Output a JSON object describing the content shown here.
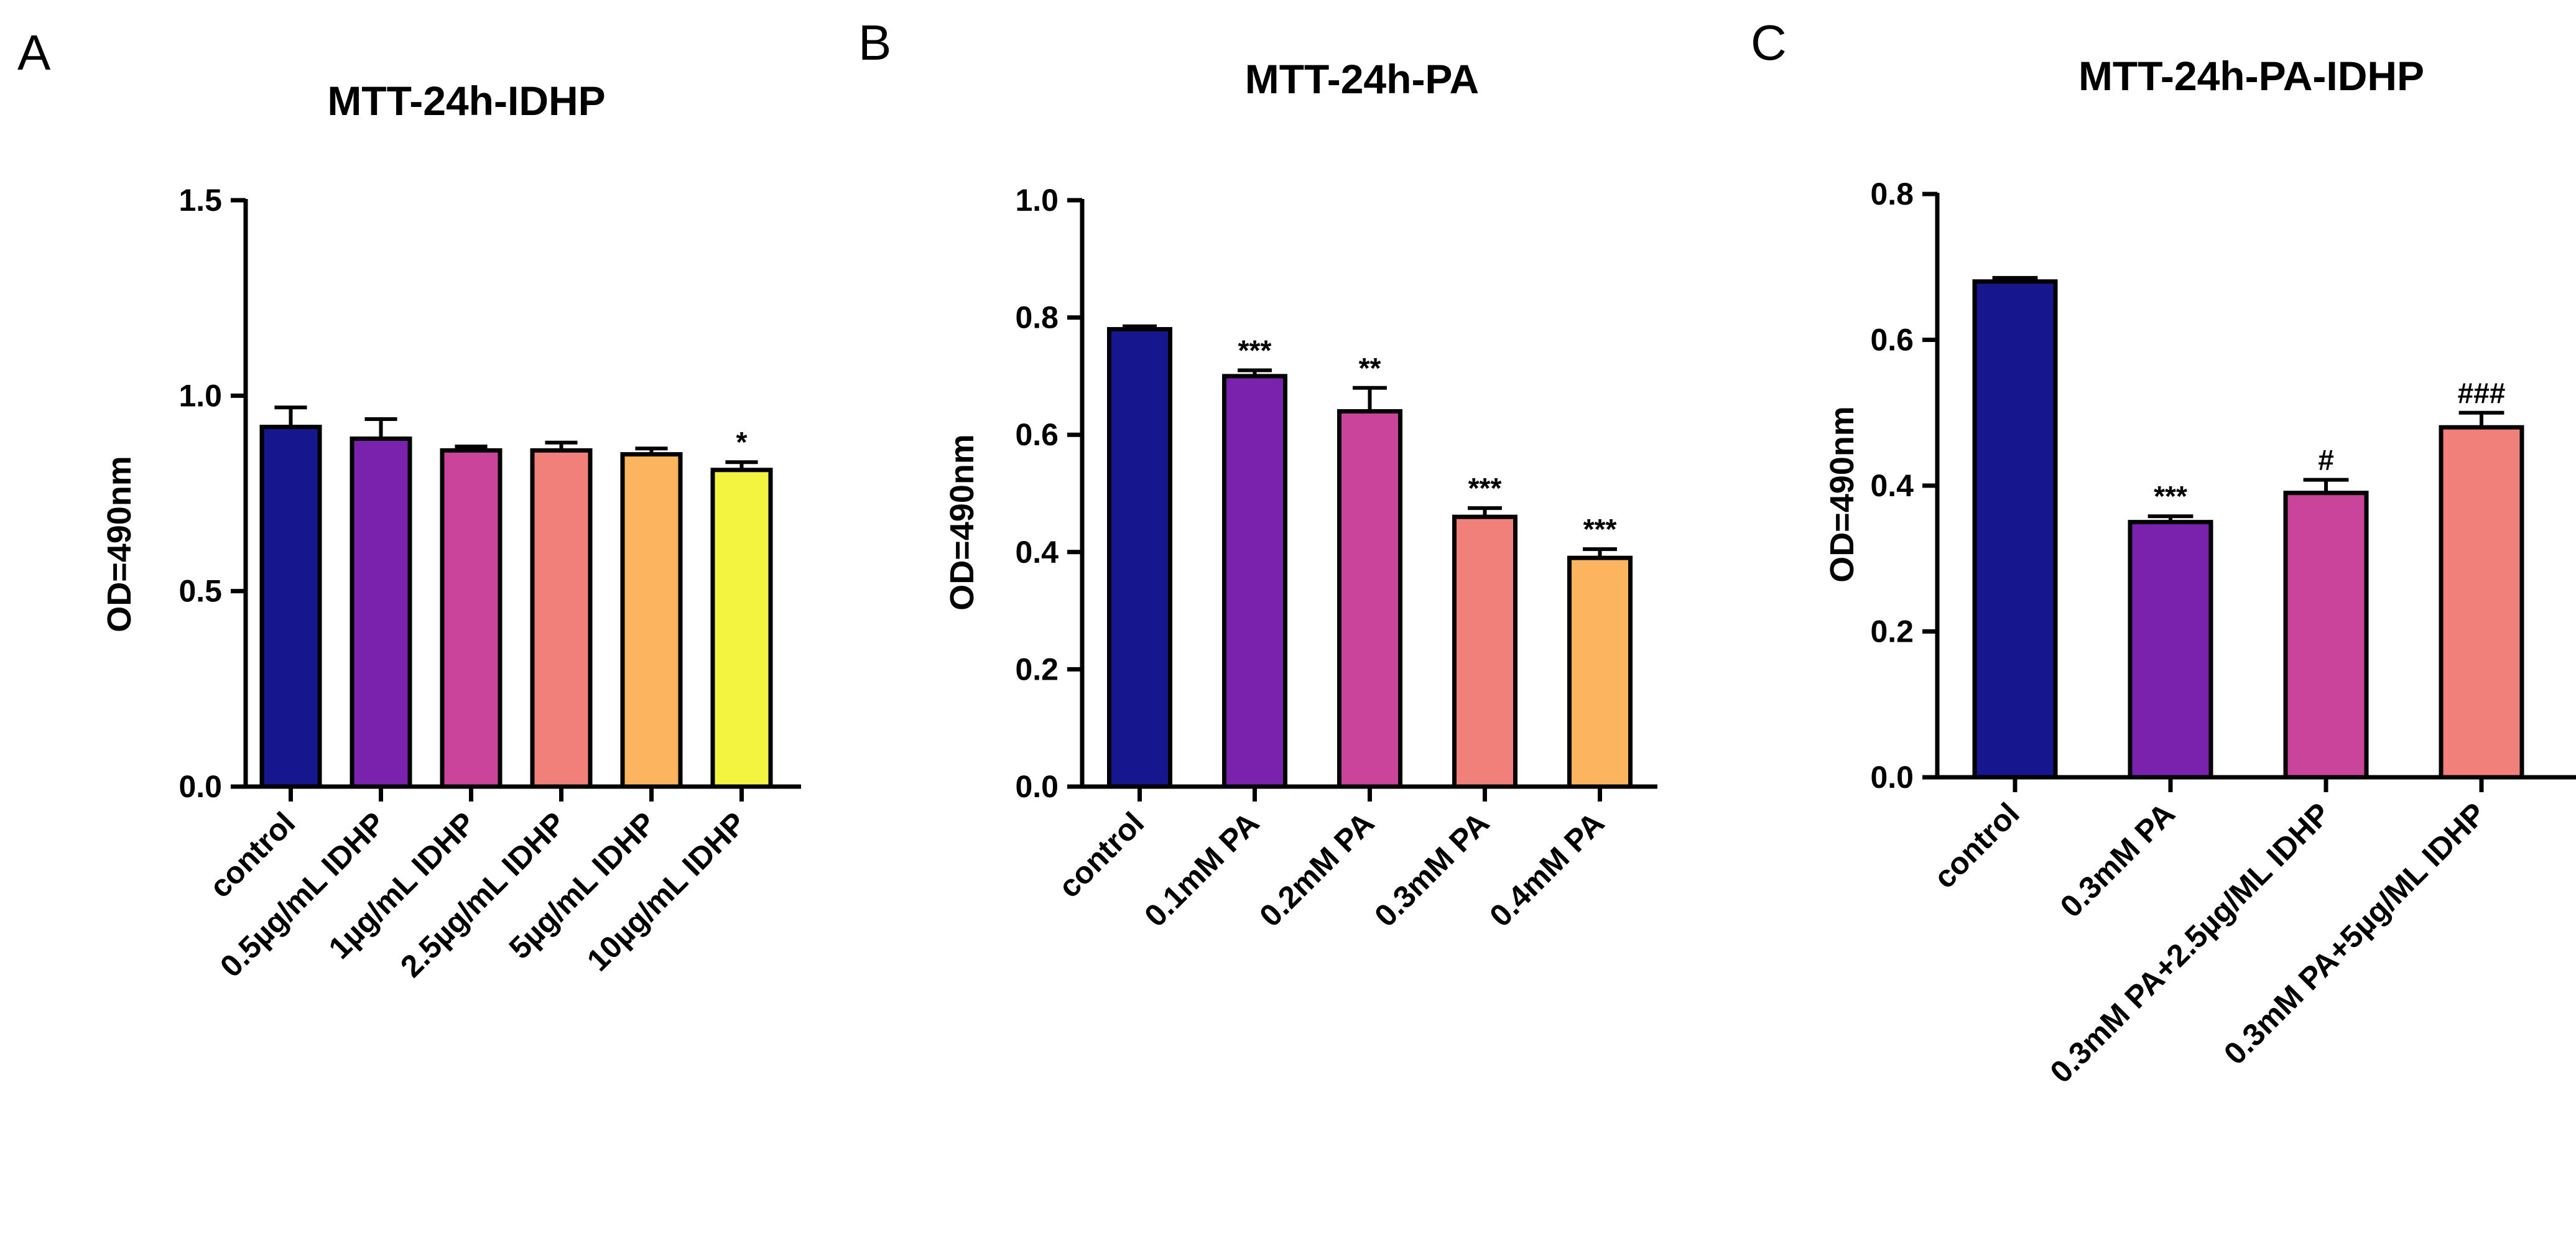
{
  "chart_data": [
    {
      "type": "bar",
      "panel": "A",
      "title": "MTT-24h-IDHP",
      "xlabel": "",
      "ylabel": "OD=490nm",
      "ylim": [
        0,
        1.5
      ],
      "yticks": [
        0.0,
        0.5,
        1.0,
        1.5
      ],
      "ytick_labels": [
        "0.0",
        "0.5",
        "1.0",
        "1.5"
      ],
      "categories": [
        "control",
        "0.5µg/mL IDHP",
        "1µg/mL IDHP",
        "2.5µg/mL IDHP",
        "5µg/mL IDHP",
        "10µg/mL IDHP"
      ],
      "values": [
        0.92,
        0.89,
        0.86,
        0.86,
        0.85,
        0.81
      ],
      "errors": [
        0.05,
        0.05,
        0.01,
        0.02,
        0.015,
        0.02
      ],
      "colors": [
        "#16178e",
        "#7a22ad",
        "#c9449a",
        "#f2807a",
        "#fcb45e",
        "#f3f440"
      ],
      "annotations": [
        "",
        "",
        "",
        "",
        "",
        "*"
      ]
    },
    {
      "type": "bar",
      "panel": "B",
      "title": "MTT-24h-PA",
      "xlabel": "",
      "ylabel": "OD=490nm",
      "ylim": [
        0,
        1.0
      ],
      "yticks": [
        0.0,
        0.2,
        0.4,
        0.6,
        0.8,
        1.0
      ],
      "ytick_labels": [
        "0.0",
        "0.2",
        "0.4",
        "0.6",
        "0.8",
        "1.0"
      ],
      "categories": [
        "control",
        "0.1mM PA",
        "0.2mM PA",
        "0.3mM PA",
        "0.4mM PA"
      ],
      "values": [
        0.78,
        0.7,
        0.64,
        0.46,
        0.39
      ],
      "errors": [
        0.005,
        0.01,
        0.04,
        0.015,
        0.015
      ],
      "colors": [
        "#16178e",
        "#7a22ad",
        "#c9449a",
        "#f2807a",
        "#fcb45e"
      ],
      "annotations": [
        "",
        "***",
        "**",
        "***",
        "***"
      ]
    },
    {
      "type": "bar",
      "panel": "C",
      "title": "MTT-24h-PA-IDHP",
      "xlabel": "",
      "ylabel": "OD=490nm",
      "ylim": [
        0,
        0.8
      ],
      "yticks": [
        0.0,
        0.2,
        0.4,
        0.6,
        0.8
      ],
      "ytick_labels": [
        "0.0",
        "0.2",
        "0.4",
        "0.6",
        "0.8"
      ],
      "categories": [
        "control",
        "0.3mM PA",
        "0.3mM PA+2.5µg/ML IDHP",
        "0.3mM PA+5µg/ML IDHP"
      ],
      "values": [
        0.68,
        0.35,
        0.39,
        0.48
      ],
      "errors": [
        0.005,
        0.008,
        0.018,
        0.02
      ],
      "colors": [
        "#16178e",
        "#7a22ad",
        "#c9449a",
        "#f2807a"
      ],
      "annotations": [
        "",
        "***",
        "#",
        "###"
      ]
    }
  ]
}
